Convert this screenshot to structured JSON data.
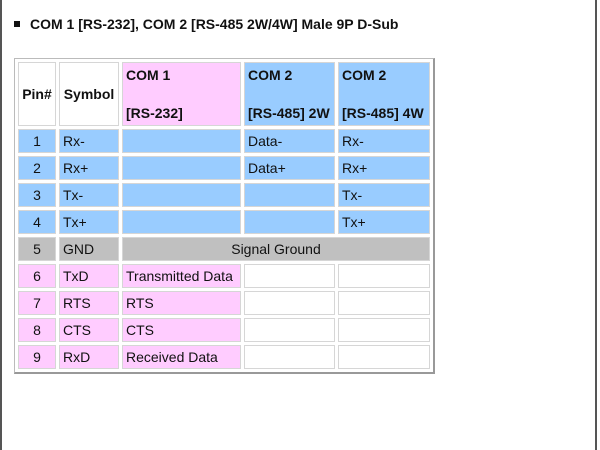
{
  "title": "COM 1 [RS-232], COM 2 [RS-485 2W/4W] Male 9P D-Sub",
  "colors": {
    "blue": "#99ccff",
    "pink": "#ffccff",
    "gray": "#c0c0c0"
  },
  "table": {
    "headers": {
      "pin": "Pin#",
      "symbol": "Symbol",
      "com1": {
        "line1": "COM 1",
        "line2": "[RS-232]"
      },
      "com2_2w": {
        "line1": "COM 2",
        "line2": "[RS-485] 2W"
      },
      "com2_4w": {
        "line1": "COM 2",
        "line2": "[RS-485] 4W"
      }
    },
    "rows": [
      {
        "pin": "1",
        "symbol": "Rx-",
        "com1": "",
        "com2_2w": "Data-",
        "com2_4w": "Rx-"
      },
      {
        "pin": "2",
        "symbol": "Rx+",
        "com1": "",
        "com2_2w": "Data+",
        "com2_4w": "Rx+"
      },
      {
        "pin": "3",
        "symbol": "Tx-",
        "com1": "",
        "com2_2w": "",
        "com2_4w": "Tx-"
      },
      {
        "pin": "4",
        "symbol": "Tx+",
        "com1": "",
        "com2_2w": "",
        "com2_4w": "Tx+"
      },
      {
        "pin": "5",
        "symbol": "GND",
        "merged": "Signal Ground"
      },
      {
        "pin": "6",
        "symbol": "TxD",
        "com1": "Transmitted Data",
        "com2_2w": "",
        "com2_4w": ""
      },
      {
        "pin": "7",
        "symbol": "RTS",
        "com1": "RTS",
        "com2_2w": "",
        "com2_4w": ""
      },
      {
        "pin": "8",
        "symbol": "CTS",
        "com1": "CTS",
        "com2_2w": "",
        "com2_4w": ""
      },
      {
        "pin": "9",
        "symbol": "RxD",
        "com1": "Received Data",
        "com2_2w": "",
        "com2_4w": ""
      }
    ]
  }
}
